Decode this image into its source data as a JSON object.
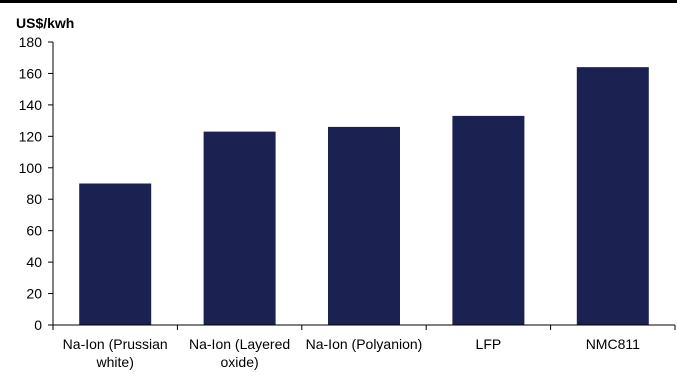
{
  "chart_data": {
    "type": "bar",
    "unit_label": "US$/kwh",
    "categories": [
      [
        "Na-Ion (Prussian",
        "white)"
      ],
      [
        "Na-Ion (Layered",
        "oxide)"
      ],
      [
        "Na-Ion (Polyanion)"
      ],
      [
        "LFP"
      ],
      [
        "NMC811"
      ]
    ],
    "values": [
      90,
      123,
      126,
      133,
      164
    ],
    "ylim": [
      0,
      180
    ],
    "yticks": [
      0,
      20,
      40,
      60,
      80,
      100,
      120,
      140,
      160,
      180
    ],
    "grid": false,
    "bar_color": "#1b2251"
  }
}
